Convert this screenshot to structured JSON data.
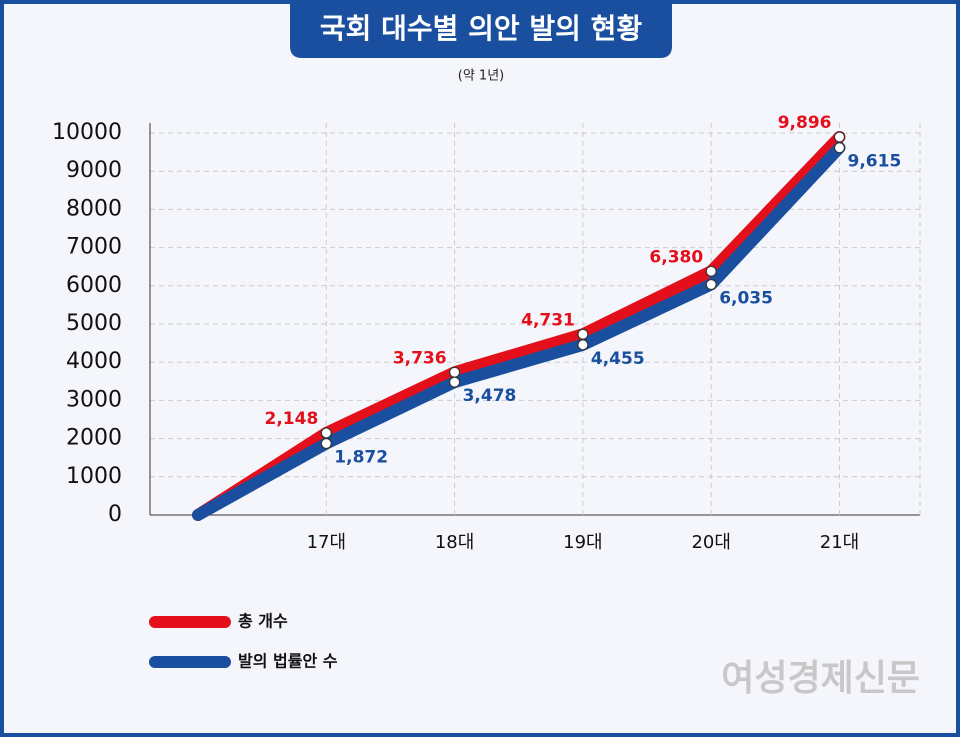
{
  "chart_data": {
    "type": "line",
    "title": "국회 대수별 의안 발의 현황",
    "subtitle": "(약 1년)",
    "categories": [
      null,
      "17대",
      "18대",
      "19대",
      "20대",
      "21대"
    ],
    "series": [
      {
        "name": "총 개수",
        "color": "#e3101b",
        "values": [
          0,
          2148,
          3736,
          4731,
          6380,
          9896
        ],
        "value_labels": [
          null,
          "2,148",
          "3,736",
          "4,731",
          "6,380",
          "9,896"
        ]
      },
      {
        "name": "발의 법률안 수",
        "color": "#1a4fa0",
        "values": [
          0,
          1872,
          3478,
          4455,
          6035,
          9615
        ],
        "value_labels": [
          null,
          "1,872",
          "3,478",
          "4,455",
          "6,035",
          "9,615"
        ]
      }
    ],
    "ylim": [
      0,
      10000
    ],
    "yticks": [
      0,
      1000,
      2000,
      3000,
      4000,
      5000,
      6000,
      7000,
      8000,
      9000,
      10000
    ],
    "grid": true,
    "watermark": "여성경제신문"
  }
}
